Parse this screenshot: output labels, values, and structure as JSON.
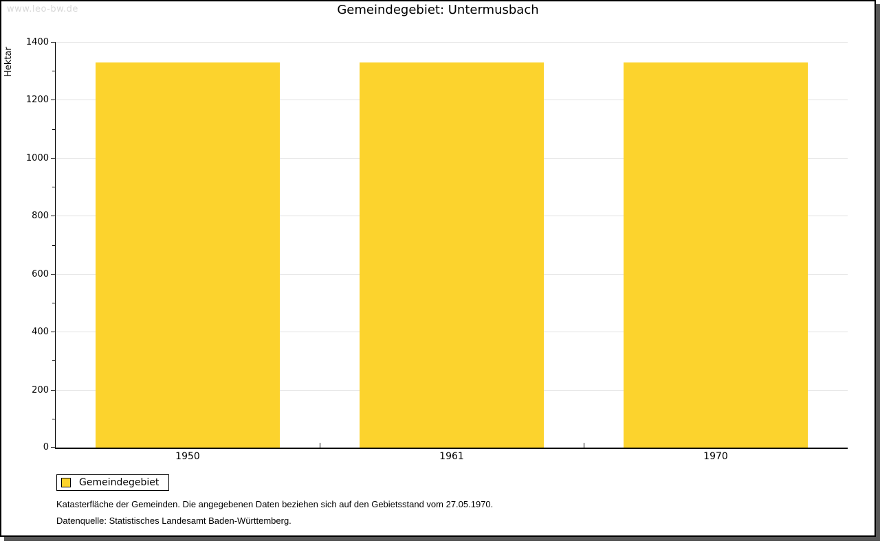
{
  "watermark": "www.leo-bw.de",
  "title": "Gemeindegebiet: Untermusbach",
  "chart_data": {
    "type": "bar",
    "title": "Gemeindegebiet: Untermusbach",
    "categories": [
      "1950",
      "1961",
      "1970"
    ],
    "series": [
      {
        "name": "Gemeindegebiet",
        "values": [
          1330,
          1330,
          1330
        ]
      }
    ],
    "xlabel": "",
    "ylabel": "Hektar",
    "ylim": [
      0,
      1400
    ],
    "yticks": [
      0,
      200,
      400,
      600,
      800,
      1000,
      1200,
      1400
    ],
    "ytick_minor_step": 100,
    "grid": true,
    "legend_position": "bottom-left",
    "bar_color": "#fcd32d",
    "gridline_color": "#e0e0e0"
  },
  "legend": {
    "items": [
      {
        "label": "Gemeindegebiet",
        "color": "#fcd32d"
      }
    ]
  },
  "footnotes": [
    "Katasterfläche der Gemeinden. Die angegebenen Daten beziehen sich auf den Gebietsstand vom 27.05.1970.",
    "Datenquelle: Statistisches Landesamt Baden-Württemberg."
  ]
}
